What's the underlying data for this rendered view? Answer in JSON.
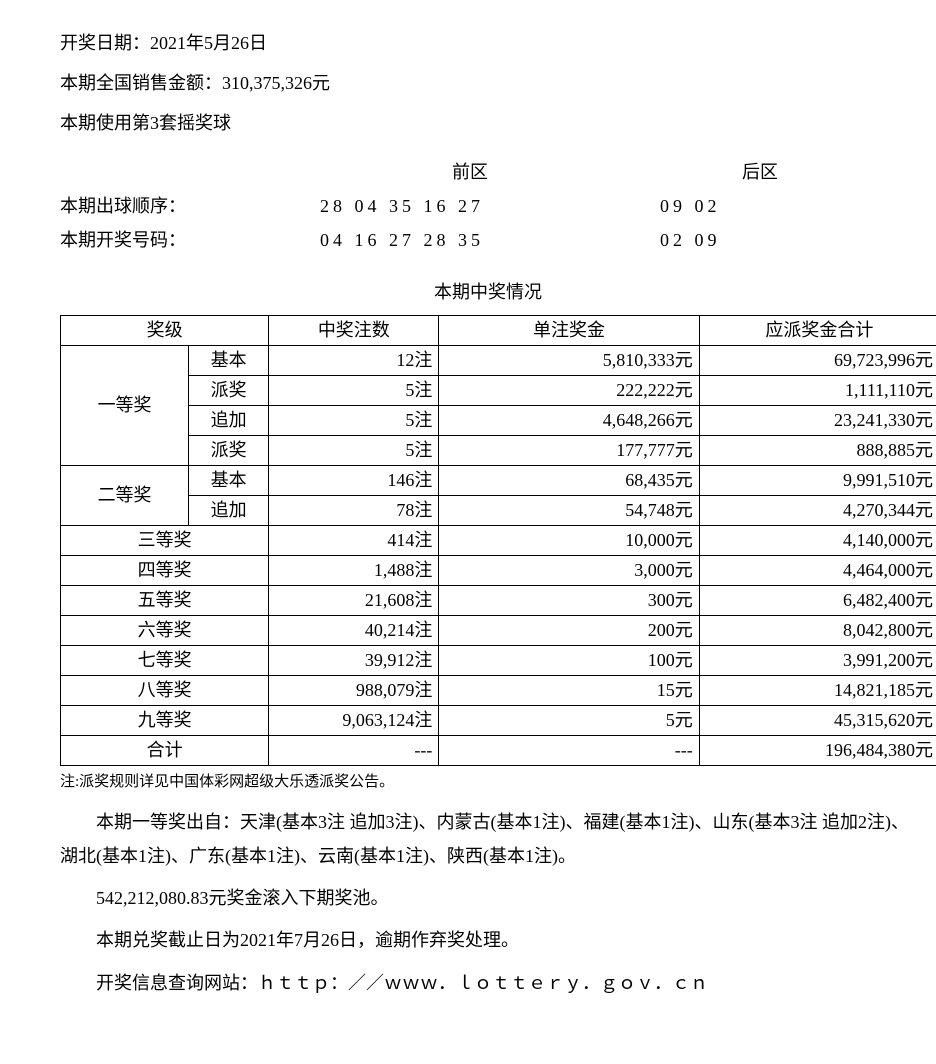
{
  "header": {
    "draw_date_line": "开奖日期：2021年5月26日",
    "sales_line": "本期全国销售金额：310,375,326元",
    "ballset_line": "本期使用第3套摇奖球"
  },
  "numbers": {
    "front_label": "前区",
    "back_label": "后区",
    "draw_order_label": "本期出球顺序：",
    "winning_label": "本期开奖号码：",
    "draw_order_front": "28 04 35 16 27",
    "draw_order_back": "09 02",
    "winning_front": "04 16 27 28 35",
    "winning_back": "02 09"
  },
  "table": {
    "title": "本期中奖情况",
    "columns": {
      "c1": "奖级",
      "c2": "中奖注数",
      "c3": "单注奖金",
      "c4": "应派奖金合计"
    },
    "prize1_label": "一等奖",
    "prize2_label": "二等奖",
    "sub": {
      "basic": "基本",
      "bonus": "派奖",
      "add": "追加"
    },
    "rows": {
      "p1_basic": {
        "count": "12注",
        "per": "5,810,333元",
        "total": "69,723,996元"
      },
      "p1_bonus": {
        "count": "5注",
        "per": "222,222元",
        "total": "1,111,110元"
      },
      "p1_add": {
        "count": "5注",
        "per": "4,648,266元",
        "total": "23,241,330元"
      },
      "p1_bonus2": {
        "count": "5注",
        "per": "177,777元",
        "total": "888,885元"
      },
      "p2_basic": {
        "count": "146注",
        "per": "68,435元",
        "total": "9,991,510元"
      },
      "p2_add": {
        "count": "78注",
        "per": "54,748元",
        "total": "4,270,344元"
      },
      "p3": {
        "label": "三等奖",
        "count": "414注",
        "per": "10,000元",
        "total": "4,140,000元"
      },
      "p4": {
        "label": "四等奖",
        "count": "1,488注",
        "per": "3,000元",
        "total": "4,464,000元"
      },
      "p5": {
        "label": "五等奖",
        "count": "21,608注",
        "per": "300元",
        "total": "6,482,400元"
      },
      "p6": {
        "label": "六等奖",
        "count": "40,214注",
        "per": "200元",
        "total": "8,042,800元"
      },
      "p7": {
        "label": "七等奖",
        "count": "39,912注",
        "per": "100元",
        "total": "3,991,200元"
      },
      "p8": {
        "label": "八等奖",
        "count": "988,079注",
        "per": "15元",
        "total": "14,821,185元"
      },
      "p9": {
        "label": "九等奖",
        "count": "9,063,124注",
        "per": "5元",
        "total": "45,315,620元"
      },
      "total": {
        "label": "合计",
        "count": "---",
        "per": "---",
        "total": "196,484,380元"
      }
    }
  },
  "footer": {
    "note_small": "注:派奖规则详见中国体彩网超级大乐透派奖公告。",
    "para1": "本期一等奖出自：天津(基本3注 追加3注)、内蒙古(基本1注)、福建(基本1注)、山东(基本3注 追加2注)、湖北(基本1注)、广东(基本1注)、云南(基本1注)、陕西(基本1注)。",
    "para2": "542,212,080.83元奖金滚入下期奖池。",
    "para3": "本期兑奖截止日为2021年7月26日，逾期作弃奖处理。",
    "para4": "开奖信息查询网站：ｈｔｔｐ：／／ｗｗｗ．ｌｏｔｔｅｒｙ．ｇｏｖ．ｃｎ"
  }
}
